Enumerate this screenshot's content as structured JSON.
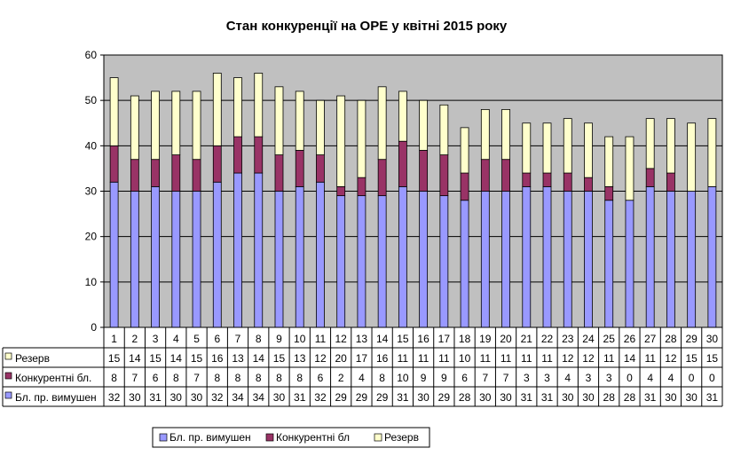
{
  "chart_data": {
    "type": "bar",
    "stacked": true,
    "title": "Стан конкуренції на ОРЕ  у квітні 2015 року",
    "categories": [
      "1",
      "2",
      "3",
      "4",
      "5",
      "6",
      "7",
      "8",
      "9",
      "10",
      "11",
      "12",
      "13",
      "14",
      "15",
      "16",
      "17",
      "18",
      "19",
      "20",
      "21",
      "22",
      "23",
      "24",
      "25",
      "26",
      "27",
      "28",
      "29",
      "30"
    ],
    "ylim": [
      0,
      60
    ],
    "yticks": [
      "0",
      "10",
      "20",
      "30",
      "40",
      "50",
      "60"
    ],
    "grid": true,
    "legend_position": "bottom",
    "series": [
      {
        "name": "Бл. пр. вимушен",
        "table_label": "Бл. пр. вимушен",
        "color": "#9999ff",
        "values": [
          32,
          30,
          31,
          30,
          30,
          32,
          34,
          34,
          30,
          31,
          32,
          29,
          29,
          29,
          31,
          30,
          29,
          28,
          30,
          30,
          31,
          31,
          30,
          30,
          28,
          28,
          31,
          30,
          30,
          31
        ]
      },
      {
        "name": "Конкурентні бл",
        "table_label": "Конкурентні бл.",
        "color": "#993366",
        "values": [
          8,
          7,
          6,
          8,
          7,
          8,
          8,
          8,
          8,
          8,
          6,
          2,
          4,
          8,
          10,
          9,
          9,
          6,
          7,
          7,
          3,
          3,
          4,
          3,
          3,
          0,
          4,
          4,
          0,
          0
        ]
      },
      {
        "name": "Резерв",
        "table_label": "Резерв",
        "color": "#ffffcc",
        "values": [
          15,
          14,
          15,
          14,
          15,
          16,
          13,
          14,
          15,
          13,
          12,
          20,
          17,
          16,
          11,
          11,
          11,
          10,
          11,
          11,
          11,
          11,
          12,
          12,
          11,
          14,
          11,
          12,
          15,
          15
        ]
      }
    ],
    "plot_area_color": "#c0c0c0"
  }
}
